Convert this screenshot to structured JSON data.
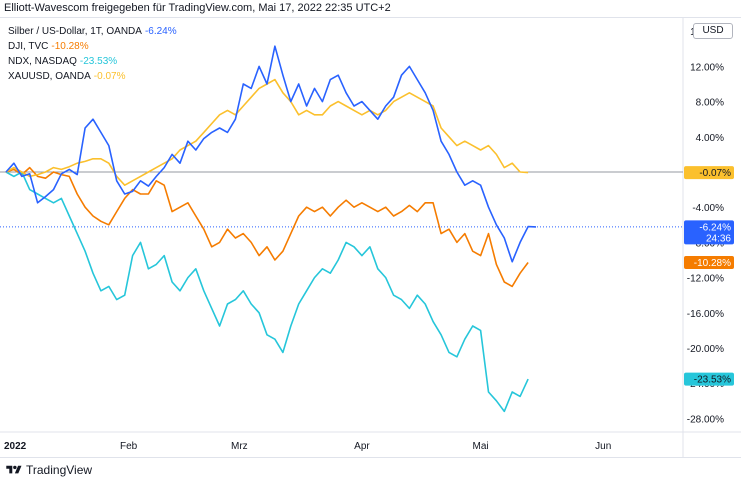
{
  "header": {
    "text": "Elliott-Wavescom freigegeben für TradingView.com, Mai 17, 2022 22:35 UTC+2"
  },
  "currency_button": "USD",
  "footer": {
    "brand": "TradingView"
  },
  "chart_data": {
    "type": "line",
    "x_unit": "trading days since 2021-12-31",
    "x_ticks": [
      {
        "label": "2022",
        "day": 0
      },
      {
        "label": "Feb",
        "day": 31
      },
      {
        "label": "Mrz",
        "day": 59
      },
      {
        "label": "Apr",
        "day": 90
      },
      {
        "label": "Mai",
        "day": 120
      },
      {
        "label": "Jun",
        "day": 151
      }
    ],
    "x_range": [
      0,
      166
    ],
    "y_ticks": [
      "16.00%",
      "12.00%",
      "8.00%",
      "4.00%",
      "-4.00%",
      "-8.00%",
      "-12.00%",
      "-16.00%",
      "-20.00%",
      "-24.00%",
      "-28.00%"
    ],
    "y_tick_values": [
      16,
      12,
      8,
      4,
      -4,
      -8,
      -12,
      -16,
      -20,
      -24,
      -28
    ],
    "ylim": [
      -30,
      17.5
    ],
    "baseline": 0,
    "countdown_label": "24:36",
    "series": [
      {
        "name": "Silber / US-Dollar, 1T, OANDA",
        "change": "-6.24%",
        "color": "#2962ff",
        "final_label": "-6.24%",
        "final_value": -6.24,
        "points": [
          [
            0,
            0
          ],
          [
            2,
            1
          ],
          [
            4,
            -0.5
          ],
          [
            6,
            -0.2
          ],
          [
            8,
            -3.5
          ],
          [
            10,
            -2.8
          ],
          [
            12,
            -2
          ],
          [
            14,
            -0.2
          ],
          [
            16,
            0.3
          ],
          [
            18,
            -0.3
          ],
          [
            20,
            5
          ],
          [
            22,
            6
          ],
          [
            24,
            4.5
          ],
          [
            26,
            3
          ],
          [
            28,
            -1
          ],
          [
            30,
            -2.5
          ],
          [
            32,
            -2.2
          ],
          [
            34,
            -1
          ],
          [
            36,
            -1.6
          ],
          [
            38,
            -0.5
          ],
          [
            40,
            0.5
          ],
          [
            42,
            2
          ],
          [
            44,
            1
          ],
          [
            46,
            3.5
          ],
          [
            48,
            2.5
          ],
          [
            50,
            3.8
          ],
          [
            52,
            4.5
          ],
          [
            54,
            5
          ],
          [
            56,
            4.5
          ],
          [
            58,
            6
          ],
          [
            60,
            10
          ],
          [
            62,
            9.5
          ],
          [
            64,
            12
          ],
          [
            66,
            10
          ],
          [
            68,
            14.3
          ],
          [
            70,
            11
          ],
          [
            72,
            8
          ],
          [
            74,
            10
          ],
          [
            76,
            7.5
          ],
          [
            78,
            9.5
          ],
          [
            80,
            8
          ],
          [
            82,
            10.5
          ],
          [
            84,
            11
          ],
          [
            86,
            9
          ],
          [
            88,
            7.5
          ],
          [
            90,
            8
          ],
          [
            92,
            7
          ],
          [
            94,
            6
          ],
          [
            96,
            7.5
          ],
          [
            98,
            8.5
          ],
          [
            100,
            11
          ],
          [
            102,
            12
          ],
          [
            104,
            10.5
          ],
          [
            106,
            9
          ],
          [
            108,
            7
          ],
          [
            110,
            3.5
          ],
          [
            112,
            2
          ],
          [
            114,
            0
          ],
          [
            116,
            -1.5
          ],
          [
            118,
            -1
          ],
          [
            120,
            -1.5
          ],
          [
            122,
            -4
          ],
          [
            124,
            -6
          ],
          [
            126,
            -7.5
          ],
          [
            128,
            -10.2
          ],
          [
            130,
            -8
          ],
          [
            132,
            -6.2
          ],
          [
            134,
            -6.24
          ]
        ]
      },
      {
        "name": "DJI, TVC",
        "change": "-10.28%",
        "color": "#f57c00",
        "final_label": "-10.28%",
        "final_value": -10.28,
        "points": [
          [
            0,
            0
          ],
          [
            2,
            0.3
          ],
          [
            4,
            -0.3
          ],
          [
            6,
            0.5
          ],
          [
            8,
            -0.5
          ],
          [
            10,
            -0.7
          ],
          [
            12,
            0
          ],
          [
            14,
            -0.3
          ],
          [
            16,
            -0.5
          ],
          [
            18,
            -2.5
          ],
          [
            20,
            -4
          ],
          [
            22,
            -5
          ],
          [
            24,
            -5.6
          ],
          [
            26,
            -6
          ],
          [
            28,
            -4.5
          ],
          [
            30,
            -3
          ],
          [
            32,
            -2
          ],
          [
            34,
            -2.5
          ],
          [
            36,
            -2.5
          ],
          [
            38,
            -1
          ],
          [
            40,
            -1.5
          ],
          [
            42,
            -4.5
          ],
          [
            44,
            -4
          ],
          [
            46,
            -3.5
          ],
          [
            48,
            -5
          ],
          [
            50,
            -6.5
          ],
          [
            52,
            -8.5
          ],
          [
            54,
            -8
          ],
          [
            56,
            -6.5
          ],
          [
            58,
            -7.5
          ],
          [
            60,
            -7
          ],
          [
            62,
            -8
          ],
          [
            64,
            -9.5
          ],
          [
            66,
            -8.5
          ],
          [
            68,
            -10
          ],
          [
            70,
            -9
          ],
          [
            72,
            -7
          ],
          [
            74,
            -5
          ],
          [
            76,
            -4
          ],
          [
            78,
            -4.5
          ],
          [
            80,
            -4
          ],
          [
            82,
            -5
          ],
          [
            84,
            -4
          ],
          [
            86,
            -3.2
          ],
          [
            88,
            -4
          ],
          [
            90,
            -3.5
          ],
          [
            92,
            -4
          ],
          [
            94,
            -4.5
          ],
          [
            96,
            -4
          ],
          [
            98,
            -5
          ],
          [
            100,
            -4.5
          ],
          [
            102,
            -3.8
          ],
          [
            104,
            -4.5
          ],
          [
            106,
            -3.5
          ],
          [
            108,
            -3.5
          ],
          [
            110,
            -7
          ],
          [
            112,
            -6.5
          ],
          [
            114,
            -8
          ],
          [
            116,
            -7
          ],
          [
            118,
            -9
          ],
          [
            120,
            -9.5
          ],
          [
            122,
            -7
          ],
          [
            124,
            -10.5
          ],
          [
            126,
            -12.5
          ],
          [
            128,
            -13
          ],
          [
            130,
            -11.5
          ],
          [
            132,
            -10.28
          ]
        ]
      },
      {
        "name": "NDX, NASDAQ",
        "change": "-23.53%",
        "color": "#26c6da",
        "final_label": "-23.53%",
        "final_value": -23.53,
        "points": [
          [
            0,
            0
          ],
          [
            2,
            -0.5
          ],
          [
            4,
            0
          ],
          [
            6,
            -2
          ],
          [
            8,
            -2.5
          ],
          [
            10,
            -3
          ],
          [
            12,
            -3.5
          ],
          [
            14,
            -3
          ],
          [
            16,
            -5
          ],
          [
            18,
            -7
          ],
          [
            20,
            -9
          ],
          [
            22,
            -11.5
          ],
          [
            24,
            -13.5
          ],
          [
            26,
            -13
          ],
          [
            28,
            -14.5
          ],
          [
            30,
            -14
          ],
          [
            32,
            -9.5
          ],
          [
            34,
            -8
          ],
          [
            36,
            -11
          ],
          [
            38,
            -10.5
          ],
          [
            40,
            -9.5
          ],
          [
            42,
            -12.5
          ],
          [
            44,
            -13.5
          ],
          [
            46,
            -12
          ],
          [
            48,
            -11
          ],
          [
            50,
            -13.5
          ],
          [
            52,
            -15.5
          ],
          [
            54,
            -17.5
          ],
          [
            56,
            -15
          ],
          [
            58,
            -14.5
          ],
          [
            60,
            -13.5
          ],
          [
            62,
            -15
          ],
          [
            64,
            -16
          ],
          [
            66,
            -18.5
          ],
          [
            68,
            -19
          ],
          [
            70,
            -20.5
          ],
          [
            72,
            -17.5
          ],
          [
            74,
            -15
          ],
          [
            76,
            -13.5
          ],
          [
            78,
            -12
          ],
          [
            80,
            -11
          ],
          [
            82,
            -11.5
          ],
          [
            84,
            -10
          ],
          [
            86,
            -8
          ],
          [
            88,
            -8.5
          ],
          [
            90,
            -9.5
          ],
          [
            92,
            -8.5
          ],
          [
            94,
            -11
          ],
          [
            96,
            -12
          ],
          [
            98,
            -14
          ],
          [
            100,
            -14.5
          ],
          [
            102,
            -15.5
          ],
          [
            104,
            -14
          ],
          [
            106,
            -15
          ],
          [
            108,
            -17
          ],
          [
            110,
            -18.5
          ],
          [
            112,
            -20.5
          ],
          [
            114,
            -21
          ],
          [
            116,
            -19
          ],
          [
            118,
            -17.5
          ],
          [
            120,
            -18
          ],
          [
            122,
            -25
          ],
          [
            124,
            -26
          ],
          [
            126,
            -27.2
          ],
          [
            128,
            -25
          ],
          [
            130,
            -25.5
          ],
          [
            132,
            -23.53
          ]
        ]
      },
      {
        "name": "XAUUSD, OANDA",
        "change": "-0.07%",
        "color": "#fbc02d",
        "final_label": "-0.07%",
        "final_value": -0.07,
        "points": [
          [
            0,
            0
          ],
          [
            2,
            0.5
          ],
          [
            4,
            0
          ],
          [
            6,
            -0.5
          ],
          [
            8,
            -0.3
          ],
          [
            10,
            0
          ],
          [
            12,
            0.5
          ],
          [
            14,
            0.3
          ],
          [
            16,
            0.6
          ],
          [
            18,
            1
          ],
          [
            20,
            1.2
          ],
          [
            22,
            1.5
          ],
          [
            24,
            1.5
          ],
          [
            26,
            1
          ],
          [
            28,
            -0.5
          ],
          [
            30,
            -1.5
          ],
          [
            32,
            -1
          ],
          [
            34,
            -0.5
          ],
          [
            36,
            0
          ],
          [
            38,
            0.5
          ],
          [
            40,
            1
          ],
          [
            42,
            1.5
          ],
          [
            44,
            2.5
          ],
          [
            46,
            3
          ],
          [
            48,
            3.5
          ],
          [
            50,
            4.5
          ],
          [
            52,
            5.5
          ],
          [
            54,
            6.5
          ],
          [
            56,
            7
          ],
          [
            58,
            6.5
          ],
          [
            60,
            7.5
          ],
          [
            62,
            8.5
          ],
          [
            64,
            9.5
          ],
          [
            66,
            10
          ],
          [
            68,
            10.5
          ],
          [
            70,
            9
          ],
          [
            72,
            8
          ],
          [
            74,
            6.5
          ],
          [
            76,
            7
          ],
          [
            78,
            6.5
          ],
          [
            80,
            6.5
          ],
          [
            82,
            7.5
          ],
          [
            84,
            8
          ],
          [
            86,
            7.5
          ],
          [
            88,
            7
          ],
          [
            90,
            6.5
          ],
          [
            92,
            7
          ],
          [
            94,
            6.5
          ],
          [
            96,
            7
          ],
          [
            98,
            8
          ],
          [
            100,
            8.5
          ],
          [
            102,
            9
          ],
          [
            104,
            8.5
          ],
          [
            106,
            8
          ],
          [
            108,
            7.5
          ],
          [
            110,
            5
          ],
          [
            112,
            4
          ],
          [
            114,
            3
          ],
          [
            116,
            3.5
          ],
          [
            118,
            3
          ],
          [
            120,
            2.5
          ],
          [
            122,
            3
          ],
          [
            124,
            2
          ],
          [
            126,
            0.5
          ],
          [
            128,
            1
          ],
          [
            130,
            0
          ],
          [
            132,
            -0.07
          ]
        ]
      }
    ]
  }
}
